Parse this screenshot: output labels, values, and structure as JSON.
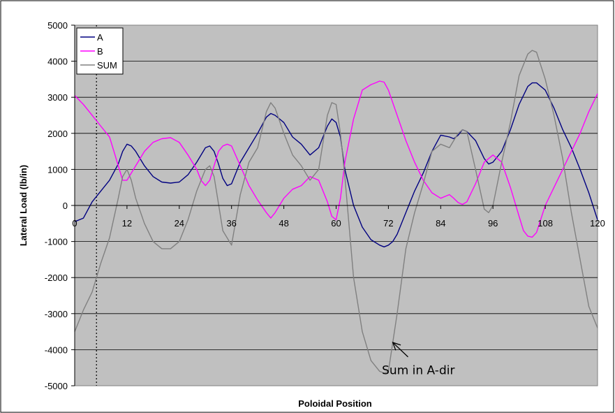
{
  "chart_data": {
    "type": "line",
    "title": "",
    "xlabel": "Poloidal Position",
    "ylabel": "Lateral Load (lb/in)",
    "xlim": [
      0,
      120
    ],
    "ylim": [
      -5000,
      5000
    ],
    "x_ticks": [
      0,
      12,
      24,
      36,
      48,
      60,
      72,
      84,
      96,
      108,
      120
    ],
    "y_ticks": [
      -5000,
      -4000,
      -3000,
      -2000,
      -1000,
      0,
      1000,
      2000,
      3000,
      4000,
      5000
    ],
    "grid": "horizontal",
    "legend_position": "top-left",
    "plot_background": "#c0c0c0",
    "reference_line_x": 5,
    "series": [
      {
        "name": "A",
        "color": "#000080",
        "x": [
          0,
          2,
          4,
          6,
          8,
          10,
          11,
          12,
          13,
          14,
          16,
          18,
          20,
          22,
          24,
          26,
          28,
          30,
          31,
          32,
          33,
          34,
          35,
          36,
          37,
          38,
          40,
          42,
          44,
          45,
          46,
          48,
          50,
          52,
          54,
          56,
          58,
          59,
          60,
          61,
          62,
          64,
          66,
          68,
          70,
          71,
          72,
          73,
          74,
          76,
          78,
          80,
          82,
          84,
          86,
          87,
          88,
          89,
          90,
          92,
          94,
          95,
          96,
          98,
          100,
          102,
          104,
          105,
          106,
          108,
          110,
          112,
          114,
          116,
          118,
          120
        ],
        "y": [
          -450,
          -350,
          100,
          400,
          700,
          1150,
          1500,
          1700,
          1650,
          1500,
          1100,
          800,
          650,
          620,
          650,
          850,
          1200,
          1600,
          1650,
          1500,
          1150,
          750,
          550,
          600,
          900,
          1200,
          1600,
          2000,
          2450,
          2550,
          2500,
          2300,
          1900,
          1700,
          1400,
          1600,
          2200,
          2400,
          2300,
          1900,
          1000,
          0,
          -600,
          -950,
          -1100,
          -1150,
          -1100,
          -1000,
          -800,
          -200,
          400,
          900,
          1500,
          1950,
          1900,
          1850,
          1950,
          2100,
          2050,
          1800,
          1300,
          1150,
          1200,
          1500,
          2100,
          2800,
          3300,
          3400,
          3400,
          3200,
          2700,
          2100,
          1600,
          1000,
          350,
          -400
        ]
      },
      {
        "name": "B",
        "color": "#ff00ff",
        "x": [
          0,
          2,
          4,
          6,
          8,
          9,
          10,
          11,
          12,
          13,
          14,
          16,
          18,
          20,
          22,
          24,
          26,
          28,
          29,
          30,
          31,
          32,
          33,
          34,
          35,
          36,
          38,
          40,
          42,
          44,
          45,
          46,
          48,
          50,
          52,
          54,
          56,
          58,
          59,
          60,
          61,
          62,
          64,
          66,
          68,
          69,
          70,
          71,
          72,
          74,
          76,
          78,
          80,
          82,
          84,
          86,
          87,
          88,
          89,
          90,
          92,
          94,
          96,
          98,
          100,
          102,
          103,
          104,
          105,
          106,
          108,
          110,
          112,
          114,
          116,
          118,
          120
        ],
        "y": [
          3050,
          2800,
          2500,
          2200,
          1900,
          1500,
          1100,
          700,
          700,
          900,
          1100,
          1500,
          1750,
          1850,
          1880,
          1750,
          1400,
          1000,
          700,
          550,
          700,
          1100,
          1500,
          1650,
          1700,
          1650,
          1100,
          550,
          150,
          -200,
          -350,
          -200,
          200,
          450,
          550,
          800,
          700,
          100,
          -300,
          -400,
          200,
          1200,
          2400,
          3200,
          3350,
          3400,
          3450,
          3420,
          3200,
          2500,
          1800,
          1200,
          700,
          350,
          200,
          300,
          200,
          80,
          30,
          100,
          600,
          1200,
          1400,
          1200,
          500,
          -300,
          -700,
          -850,
          -880,
          -750,
          0,
          500,
          1000,
          1500,
          2000,
          2600,
          3100
        ]
      },
      {
        "name": "SUM",
        "color": "#808080",
        "x": [
          0,
          2,
          4,
          5,
          6,
          8,
          10,
          11,
          12,
          13,
          14,
          16,
          18,
          20,
          22,
          24,
          26,
          28,
          30,
          31,
          32,
          34,
          36,
          38,
          40,
          42,
          44,
          45,
          46,
          48,
          50,
          52,
          54,
          56,
          58,
          59,
          60,
          61,
          62,
          64,
          66,
          68,
          70,
          71,
          72,
          74,
          76,
          78,
          80,
          82,
          84,
          86,
          88,
          89,
          90,
          92,
          94,
          95,
          96,
          98,
          100,
          102,
          104,
          105,
          106,
          108,
          110,
          112,
          114,
          116,
          118,
          120
        ],
        "y": [
          -3500,
          -2900,
          -2400,
          -2000,
          -1600,
          -900,
          200,
          800,
          1000,
          700,
          200,
          -500,
          -1000,
          -1200,
          -1200,
          -1000,
          -400,
          400,
          1000,
          1100,
          800,
          -700,
          -1100,
          300,
          1200,
          1600,
          2600,
          2850,
          2700,
          2000,
          1400,
          1100,
          700,
          1000,
          2500,
          2850,
          2800,
          2000,
          800,
          -2000,
          -3500,
          -4300,
          -4600,
          -4650,
          -4600,
          -3000,
          -1200,
          -200,
          600,
          1500,
          1700,
          1600,
          2000,
          2100,
          2050,
          1000,
          -100,
          -200,
          0,
          1200,
          2300,
          3600,
          4200,
          4300,
          4250,
          3500,
          2500,
          1300,
          -200,
          -1500,
          -2800,
          -3400
        ]
      }
    ],
    "annotation": {
      "text": "Sum in A-dir",
      "text_x": 75,
      "text_y": -4600,
      "arrow_tip_x": 73,
      "arrow_tip_y": -3800,
      "arrow_tail_x": 76.5,
      "arrow_tail_y": -4200
    }
  }
}
